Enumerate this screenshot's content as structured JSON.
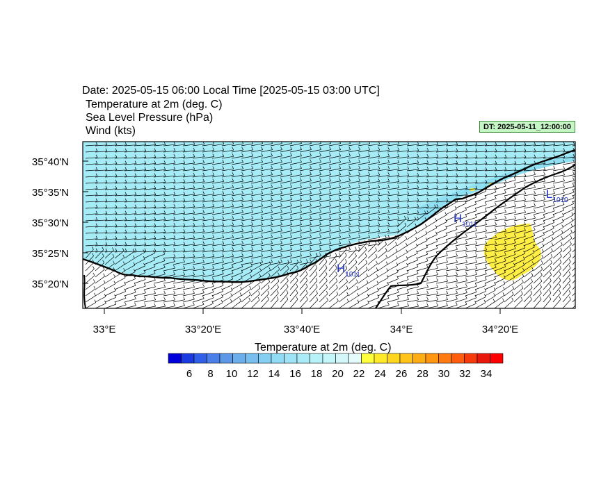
{
  "header": {
    "date_line": "Date: 2025-05-15  06:00 Local Time [2025-05-15  03:00 UTC]",
    "fields": [
      "Temperature at 2m   (deg. C)",
      "Sea Level Pressure   (hPa)",
      "Wind   (kts)"
    ],
    "dt_badge": "DT: 2025-05-11_12:00:00"
  },
  "map": {
    "lat_ticks": [
      "35°40'N",
      "35°35'N",
      "35°30'N",
      "35°25'N",
      "35°20'N"
    ],
    "lon_ticks": [
      "33°E",
      "33°20'E",
      "33°40'E",
      "34°E",
      "34°20'E"
    ],
    "pressure_centers": [
      {
        "type": "H",
        "value": "1011",
        "location": "north-central coast"
      },
      {
        "type": "H",
        "value": "1011",
        "location": "east coast"
      },
      {
        "type": "L",
        "value": "1010",
        "location": "northeast"
      }
    ],
    "colors": {
      "sea": "#a6ecf6",
      "warm_sea": "#8ee0f2",
      "cool_sea": "#7ad0f0",
      "land": "#ffffff",
      "warm_patch": "#ffee44",
      "coastline": "#000000",
      "pressure_label": "#1a2fd0"
    }
  },
  "colorbar": {
    "title": "Temperature at 2m  (deg. C)",
    "labels": [
      "6",
      "8",
      "10",
      "12",
      "14",
      "16",
      "18",
      "20",
      "22",
      "24",
      "26",
      "28",
      "30",
      "32",
      "34"
    ],
    "colors": [
      "#0000d8",
      "#1b3ae0",
      "#2f5ee8",
      "#4a7ee8",
      "#5d97e8",
      "#6aaeec",
      "#78bff0",
      "#84cff2",
      "#91dbf4",
      "#9ee4f6",
      "#a9ecf8",
      "#b6f2f8",
      "#c5f6fa",
      "#d4f8fa",
      "#e4fcfc",
      "#ffff3e",
      "#ffea2a",
      "#ffd61e",
      "#ffc41a",
      "#ffad14",
      "#ff9612",
      "#ff7a10",
      "#ff5c0e",
      "#f53a0c",
      "#e8180a",
      "#ff0000"
    ]
  }
}
